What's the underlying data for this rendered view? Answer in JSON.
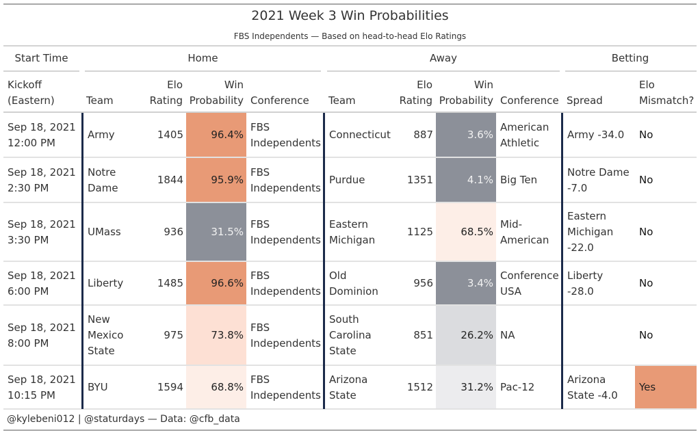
{
  "title": "2021 Week 3 Win Probabilities",
  "subtitle": "FBS Independents — Based on head-to-head Elo Ratings",
  "spanners": {
    "start_time": "Start Time",
    "home": "Home",
    "away": "Away",
    "betting": "Betting"
  },
  "columns": {
    "kickoff": [
      "Kickoff",
      "(Eastern)"
    ],
    "home_team": "Team",
    "home_elo": [
      "Elo",
      "Rating"
    ],
    "home_win": [
      "Win",
      "Probability"
    ],
    "home_conf": "Conference",
    "away_team": "Team",
    "away_elo": [
      "Elo",
      "Rating"
    ],
    "away_win": [
      "Win",
      "Probability"
    ],
    "away_conf": "Conference",
    "spread": "Spread",
    "mismatch": [
      "Elo",
      "Mismatch?"
    ]
  },
  "colors": {
    "high": "#e89a76",
    "low": "#8c9099",
    "mid_high": "#fde0d4",
    "mid_high_light": "#fdeee7",
    "mid_low": "#dbdcdf",
    "mid_low_light": "#ececee",
    "divider": "#1b2a4a",
    "mismatch_yes": "#e89a76"
  },
  "rows": [
    {
      "kickoff": [
        "Sep 18, 2021",
        "12:00 PM"
      ],
      "home_team": [
        "Army"
      ],
      "home_elo": "1405",
      "home_win": "96.4%",
      "home_win_value": 96.4,
      "home_conf": [
        "FBS",
        "Independents"
      ],
      "away_team": [
        "Connecticut"
      ],
      "away_elo": "887",
      "away_win": "3.6%",
      "away_win_value": 3.6,
      "away_conf": [
        "American",
        "Athletic"
      ],
      "spread": [
        "Army -34.0"
      ],
      "mismatch": "No"
    },
    {
      "kickoff": [
        "Sep 18, 2021",
        "2:30 PM"
      ],
      "home_team": [
        "Notre",
        "Dame"
      ],
      "home_elo": "1844",
      "home_win": "95.9%",
      "home_win_value": 95.9,
      "home_conf": [
        "FBS",
        "Independents"
      ],
      "away_team": [
        "Purdue"
      ],
      "away_elo": "1351",
      "away_win": "4.1%",
      "away_win_value": 4.1,
      "away_conf": [
        "Big Ten"
      ],
      "spread": [
        "Notre Dame",
        "-7.0"
      ],
      "mismatch": "No"
    },
    {
      "kickoff": [
        "Sep 18, 2021",
        "3:30 PM"
      ],
      "home_team": [
        "UMass"
      ],
      "home_elo": "936",
      "home_win": "31.5%",
      "home_win_value": 31.5,
      "home_conf": [
        "FBS",
        "Independents"
      ],
      "away_team": [
        "Eastern",
        "Michigan"
      ],
      "away_elo": "1125",
      "away_win": "68.5%",
      "away_win_value": 68.5,
      "away_conf": [
        "Mid-",
        "American"
      ],
      "spread": [
        "Eastern",
        "Michigan",
        "-22.0"
      ],
      "mismatch": "No"
    },
    {
      "kickoff": [
        "Sep 18, 2021",
        "6:00 PM"
      ],
      "home_team": [
        "Liberty"
      ],
      "home_elo": "1485",
      "home_win": "96.6%",
      "home_win_value": 96.6,
      "home_conf": [
        "FBS",
        "Independents"
      ],
      "away_team": [
        "Old",
        "Dominion"
      ],
      "away_elo": "956",
      "away_win": "3.4%",
      "away_win_value": 3.4,
      "away_conf": [
        "Conference",
        "USA"
      ],
      "spread": [
        "Liberty -28.0"
      ],
      "mismatch": "No"
    },
    {
      "kickoff": [
        "Sep 18, 2021",
        "8:00 PM"
      ],
      "home_team": [
        "New",
        "Mexico",
        "State"
      ],
      "home_elo": "975",
      "home_win": "73.8%",
      "home_win_value": 73.8,
      "home_conf": [
        "FBS",
        "Independents"
      ],
      "away_team": [
        "South",
        "Carolina",
        "State"
      ],
      "away_elo": "851",
      "away_win": "26.2%",
      "away_win_value": 26.2,
      "away_conf": [
        "NA"
      ],
      "spread": [],
      "mismatch": "No"
    },
    {
      "kickoff": [
        "Sep 18, 2021",
        "10:15 PM"
      ],
      "home_team": [
        "BYU"
      ],
      "home_elo": "1594",
      "home_win": "68.8%",
      "home_win_value": 68.8,
      "home_conf": [
        "FBS",
        "Independents"
      ],
      "away_team": [
        "Arizona",
        "State"
      ],
      "away_elo": "1512",
      "away_win": "31.2%",
      "away_win_value": 31.2,
      "away_conf": [
        "Pac-12"
      ],
      "spread": [
        "Arizona",
        "State -4.0"
      ],
      "mismatch": "Yes"
    }
  ],
  "footer": "@kylebeni012 | @staturdays — Data: @cfb_data"
}
